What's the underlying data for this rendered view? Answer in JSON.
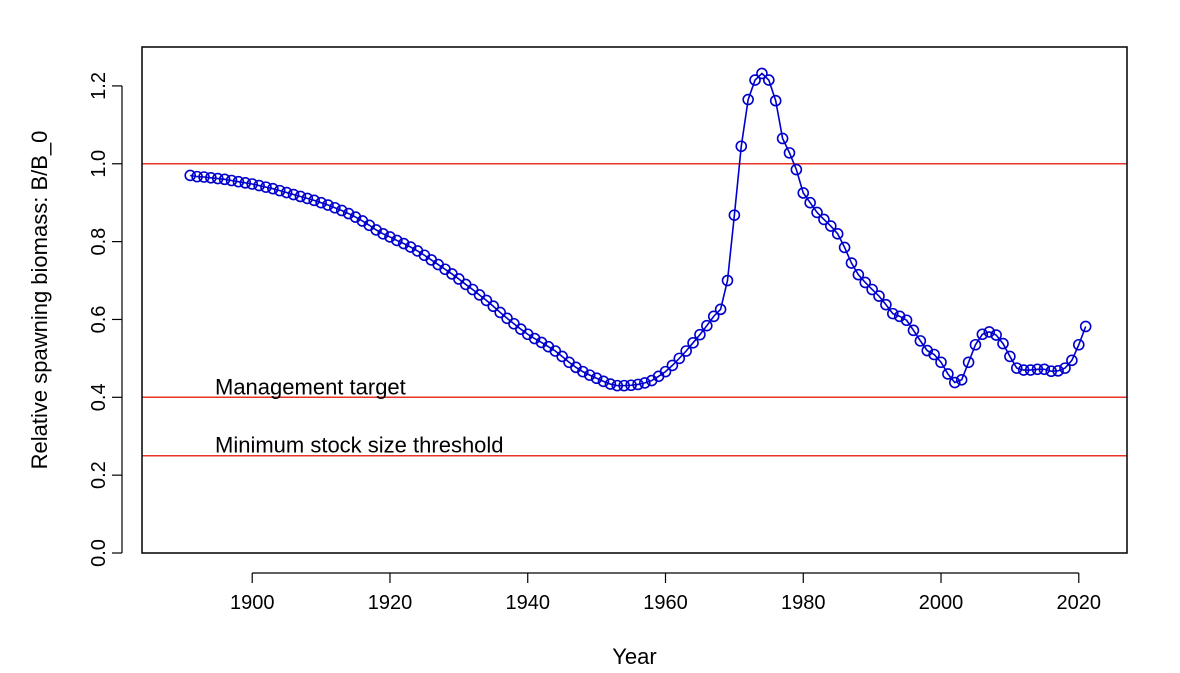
{
  "chart_data": {
    "type": "line",
    "title": "",
    "xlabel": "Year",
    "ylabel": "Relative spawning biomass: B/B_0",
    "xlim": [
      1884,
      2027
    ],
    "ylim": [
      0.0,
      1.3
    ],
    "x_ticks": [
      1900,
      1920,
      1940,
      1960,
      1980,
      2000,
      2020
    ],
    "y_ticks": [
      0.0,
      0.2,
      0.4,
      0.6,
      0.8,
      1.0,
      1.2
    ],
    "grid": false,
    "line_color": "#0000cc",
    "marker": "open-circle",
    "reference_lines": [
      {
        "y": 1.0,
        "color": "#e8322a",
        "label": ""
      },
      {
        "y": 0.4,
        "color": "#e8322a",
        "label": "Management target"
      },
      {
        "y": 0.25,
        "color": "#e8322a",
        "label": "Minimum stock size threshold"
      }
    ],
    "x": [
      1891,
      1892,
      1893,
      1894,
      1895,
      1896,
      1897,
      1898,
      1899,
      1900,
      1901,
      1902,
      1903,
      1904,
      1905,
      1906,
      1907,
      1908,
      1909,
      1910,
      1911,
      1912,
      1913,
      1914,
      1915,
      1916,
      1917,
      1918,
      1919,
      1920,
      1921,
      1922,
      1923,
      1924,
      1925,
      1926,
      1927,
      1928,
      1929,
      1930,
      1931,
      1932,
      1933,
      1934,
      1935,
      1936,
      1937,
      1938,
      1939,
      1940,
      1941,
      1942,
      1943,
      1944,
      1945,
      1946,
      1947,
      1948,
      1949,
      1950,
      1951,
      1952,
      1953,
      1954,
      1955,
      1956,
      1957,
      1958,
      1959,
      1960,
      1961,
      1962,
      1963,
      1964,
      1965,
      1966,
      1967,
      1968,
      1969,
      1970,
      1971,
      1972,
      1973,
      1974,
      1975,
      1976,
      1977,
      1978,
      1979,
      1980,
      1981,
      1982,
      1983,
      1984,
      1985,
      1986,
      1987,
      1988,
      1989,
      1990,
      1991,
      1992,
      1993,
      1994,
      1995,
      1996,
      1997,
      1998,
      1999,
      2000,
      2001,
      2002,
      2003,
      2004,
      2005,
      2006,
      2007,
      2008,
      2009,
      2010,
      2011,
      2012,
      2013,
      2014,
      2015,
      2016,
      2017,
      2018,
      2019,
      2020,
      2021
    ],
    "y": [
      0.97,
      0.967,
      0.966,
      0.964,
      0.962,
      0.96,
      0.957,
      0.954,
      0.951,
      0.948,
      0.944,
      0.94,
      0.936,
      0.931,
      0.926,
      0.921,
      0.916,
      0.911,
      0.906,
      0.9,
      0.894,
      0.887,
      0.88,
      0.872,
      0.863,
      0.853,
      0.842,
      0.83,
      0.82,
      0.812,
      0.803,
      0.795,
      0.786,
      0.776,
      0.765,
      0.753,
      0.741,
      0.729,
      0.717,
      0.704,
      0.69,
      0.677,
      0.663,
      0.649,
      0.634,
      0.618,
      0.603,
      0.589,
      0.575,
      0.562,
      0.551,
      0.541,
      0.53,
      0.519,
      0.505,
      0.49,
      0.477,
      0.466,
      0.457,
      0.449,
      0.441,
      0.434,
      0.43,
      0.43,
      0.431,
      0.433,
      0.437,
      0.443,
      0.454,
      0.466,
      0.482,
      0.5,
      0.519,
      0.54,
      0.561,
      0.584,
      0.608,
      0.626,
      0.7,
      0.868,
      1.045,
      1.165,
      1.215,
      1.232,
      1.215,
      1.162,
      1.065,
      1.028,
      0.985,
      0.925,
      0.9,
      0.875,
      0.857,
      0.84,
      0.82,
      0.785,
      0.745,
      0.715,
      0.695,
      0.677,
      0.66,
      0.638,
      0.615,
      0.608,
      0.598,
      0.572,
      0.545,
      0.52,
      0.51,
      0.49,
      0.46,
      0.438,
      0.445,
      0.49,
      0.535,
      0.562,
      0.568,
      0.56,
      0.538,
      0.505,
      0.475,
      0.47,
      0.47,
      0.472,
      0.472,
      0.467,
      0.468,
      0.475,
      0.495,
      0.535,
      0.582
    ]
  }
}
